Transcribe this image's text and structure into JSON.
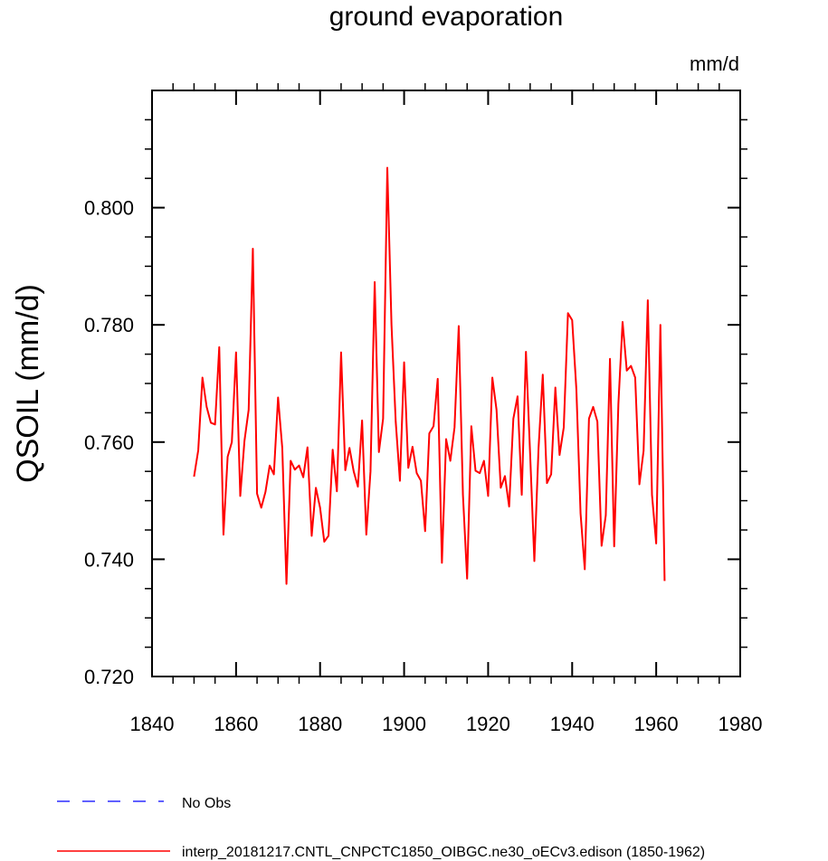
{
  "chart_data": {
    "type": "line",
    "title": "ground evaporation",
    "units": "mm/d",
    "xlabel": "",
    "ylabel": "QSOIL  (mm/d)",
    "xlim": [
      1840,
      1980
    ],
    "ylim": [
      0.72,
      0.82
    ],
    "x_ticks": [
      1840,
      1860,
      1880,
      1900,
      1920,
      1940,
      1960,
      1980
    ],
    "x_tick_labels": [
      "1840",
      "1860",
      "1880",
      "1900",
      "1920",
      "1940",
      "1960",
      "1980"
    ],
    "y_ticks": [
      0.72,
      0.74,
      0.76,
      0.78,
      0.8
    ],
    "y_tick_labels": [
      "0.720",
      "0.740",
      "0.760",
      "0.780",
      "0.800"
    ],
    "series": [
      {
        "name": "interp_20181217.CNTL_CNPCTC1850_OIBGC.ne30_oECv3.edison (1850-1962)",
        "color": "#ff0000",
        "style": "solid",
        "x": [
          1850,
          1851,
          1852,
          1853,
          1854,
          1855,
          1856,
          1857,
          1858,
          1859,
          1860,
          1861,
          1862,
          1863,
          1864,
          1865,
          1866,
          1867,
          1868,
          1869,
          1870,
          1871,
          1872,
          1873,
          1874,
          1875,
          1876,
          1877,
          1878,
          1879,
          1880,
          1881,
          1882,
          1883,
          1884,
          1885,
          1886,
          1887,
          1888,
          1889,
          1890,
          1891,
          1892,
          1893,
          1894,
          1895,
          1896,
          1897,
          1898,
          1899,
          1900,
          1901,
          1902,
          1903,
          1904,
          1905,
          1906,
          1907,
          1908,
          1909,
          1910,
          1911,
          1912,
          1913,
          1914,
          1915,
          1916,
          1917,
          1918,
          1919,
          1920,
          1921,
          1922,
          1923,
          1924,
          1925,
          1926,
          1927,
          1928,
          1929,
          1930,
          1931,
          1932,
          1933,
          1934,
          1935,
          1936,
          1937,
          1938,
          1939,
          1940,
          1941,
          1942,
          1943,
          1944,
          1945,
          1946,
          1947,
          1948,
          1949,
          1950,
          1951,
          1952,
          1953,
          1954,
          1955,
          1956,
          1957,
          1958,
          1959,
          1960,
          1961,
          1962
        ],
        "values": [
          0.7541,
          0.7586,
          0.771,
          0.766,
          0.7633,
          0.763,
          0.7762,
          0.7442,
          0.7575,
          0.76,
          0.7753,
          0.7508,
          0.7602,
          0.7655,
          0.793,
          0.7512,
          0.7488,
          0.7515,
          0.756,
          0.7545,
          0.7676,
          0.759,
          0.7358,
          0.7568,
          0.7553,
          0.756,
          0.754,
          0.7591,
          0.744,
          0.7522,
          0.7488,
          0.743,
          0.744,
          0.7587,
          0.7516,
          0.7753,
          0.7552,
          0.759,
          0.755,
          0.7524,
          0.7637,
          0.7442,
          0.755,
          0.7873,
          0.7583,
          0.764,
          0.8068,
          0.78,
          0.7635,
          0.7534,
          0.7736,
          0.7556,
          0.7592,
          0.7547,
          0.7534,
          0.7448,
          0.7615,
          0.7627,
          0.7708,
          0.7394,
          0.7605,
          0.7568,
          0.7625,
          0.7798,
          0.751,
          0.7367,
          0.7627,
          0.7551,
          0.7547,
          0.7568,
          0.7508,
          0.771,
          0.7655,
          0.7522,
          0.7542,
          0.749,
          0.764,
          0.7678,
          0.751,
          0.7754,
          0.7578,
          0.7397,
          0.759,
          0.7715,
          0.753,
          0.7545,
          0.7693,
          0.7578,
          0.7625,
          0.782,
          0.7808,
          0.769,
          0.7478,
          0.7383,
          0.764,
          0.766,
          0.7635,
          0.7423,
          0.7475,
          0.7742,
          0.7422,
          0.7665,
          0.7805,
          0.7722,
          0.773,
          0.771,
          0.7528,
          0.7585,
          0.7842,
          0.751,
          0.7427,
          0.78,
          0.7363
        ]
      },
      {
        "name": "No Obs",
        "color": "#0000ff",
        "style": "dashed",
        "x": [],
        "values": []
      }
    ],
    "legend_position": "bottom",
    "grid": false
  }
}
